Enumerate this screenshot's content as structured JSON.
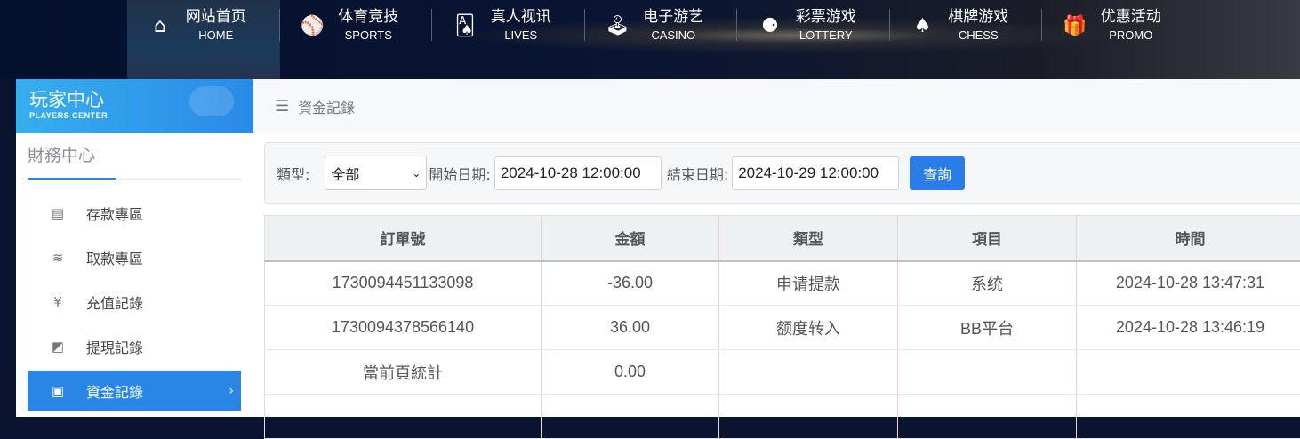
{
  "nav": [
    {
      "cn": "网站首页",
      "en": "HOME",
      "icon": "home-icon",
      "glyph": "⌂",
      "active": true
    },
    {
      "cn": "体育竞技",
      "en": "SPORTS",
      "icon": "ball-icon",
      "glyph": "⚾"
    },
    {
      "cn": "真人视讯",
      "en": "LIVES",
      "icon": "cards-icon",
      "glyph": "🂡"
    },
    {
      "cn": "电子游艺",
      "en": "CASINO",
      "icon": "joystick-icon",
      "glyph": "🕹"
    },
    {
      "cn": "彩票游戏",
      "en": "LOTTERY",
      "icon": "balls-icon",
      "glyph": "⚈"
    },
    {
      "cn": "棋牌游戏",
      "en": "CHESS",
      "icon": "spade-icon",
      "glyph": "♠"
    },
    {
      "cn": "优惠活动",
      "en": "PROMO",
      "icon": "gift-icon",
      "glyph": "🎁"
    }
  ],
  "sidebar": {
    "title": "玩家中心",
    "subtitle": "PLAYERS CENTER",
    "section": "財務中心",
    "items": [
      {
        "label": "存款專區",
        "icon": "card-icon",
        "glyph": "▤"
      },
      {
        "label": "取款專區",
        "icon": "hand-money-icon",
        "glyph": "≋"
      },
      {
        "label": "充值記錄",
        "icon": "money-bag-icon",
        "glyph": "¥"
      },
      {
        "label": "提現記錄",
        "icon": "wallet-icon",
        "glyph": "◩"
      },
      {
        "label": "資金記錄",
        "icon": "cash-icon",
        "glyph": "▣",
        "active": true
      }
    ],
    "chevron": "›"
  },
  "breadcrumb": {
    "icon": "☰",
    "label": "資金記錄"
  },
  "filter": {
    "type_label": "類型:",
    "type_value": "全部",
    "start_label": "開始日期:",
    "start_value": "2024-10-28 12:00:00",
    "end_label": "結束日期:",
    "end_value": "2024-10-29 12:00:00",
    "query_button": "查詢"
  },
  "table": {
    "headers": [
      "訂單號",
      "金額",
      "類型",
      "項目",
      "時間"
    ],
    "rows": [
      [
        "1730094451133098",
        "-36.00",
        "申请提款",
        "系统",
        "2024-10-28 13:47:31"
      ],
      [
        "1730094378566140",
        "36.00",
        "额度转入",
        "BB平台",
        "2024-10-28 13:46:19"
      ],
      [
        "當前頁統計",
        "0.00",
        "",
        "",
        ""
      ]
    ]
  },
  "colors": {
    "accent": "#2a86e4",
    "button": "#2a7de6"
  }
}
